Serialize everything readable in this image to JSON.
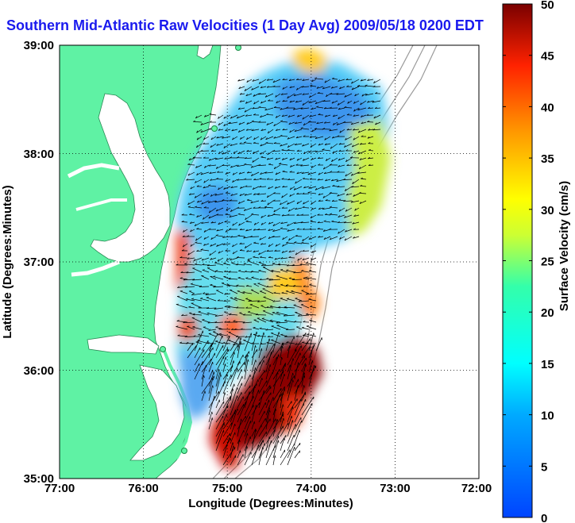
{
  "title": "Southern Mid-Atlantic Raw Velocities (1 Day Avg) 2009/05/18 0200 EDT",
  "x_axis": {
    "label": "Longitude (Degrees:Minutes)",
    "ticks": [
      "77:00",
      "76:00",
      "75:00",
      "74:00",
      "73:00",
      "72:00"
    ]
  },
  "y_axis": {
    "label": "Latitude (Degrees:Minutes)",
    "ticks": [
      "39:00",
      "38:00",
      "37:00",
      "36:00",
      "35:00"
    ]
  },
  "colorbar": {
    "label": "Surface Velocity (cm/s)",
    "ticks": [
      "50",
      "45",
      "40",
      "35",
      "30",
      "25",
      "20",
      "15",
      "10",
      "5",
      "0"
    ],
    "min": 0,
    "max": 50
  },
  "colors": {
    "land": "#5ff2a4",
    "water": "#ffffff",
    "title": "#1a1aee"
  },
  "grid": "dotted"
}
